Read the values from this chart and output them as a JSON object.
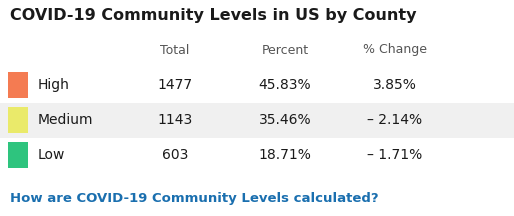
{
  "title": "COVID-19 Community Levels in US by County",
  "link_text": "How are COVID-19 Community Levels calculated?",
  "col_headers": [
    "Total",
    "Percent",
    "% Change"
  ],
  "rows": [
    {
      "label": "High",
      "color": "#F47B52",
      "total": "1477",
      "percent": "45.83%",
      "change": "3.85%",
      "bg": "#ffffff"
    },
    {
      "label": "Medium",
      "color": "#EAEA6A",
      "total": "1143",
      "percent": "35.46%",
      "change": "– 2.14%",
      "bg": "#f0f0f0"
    },
    {
      "label": "Low",
      "color": "#2EC47E",
      "total": "603",
      "percent": "18.71%",
      "change": "– 1.71%",
      "bg": "#ffffff"
    }
  ],
  "title_color": "#1a1a1a",
  "header_color": "#555555",
  "data_color": "#1a1a1a",
  "link_color": "#1a6faf",
  "bg_color": "#ffffff",
  "title_fontsize": 11.5,
  "header_fontsize": 9,
  "data_fontsize": 10,
  "link_fontsize": 9.5,
  "fig_w": 5.14,
  "fig_h": 2.16,
  "dpi": 100
}
